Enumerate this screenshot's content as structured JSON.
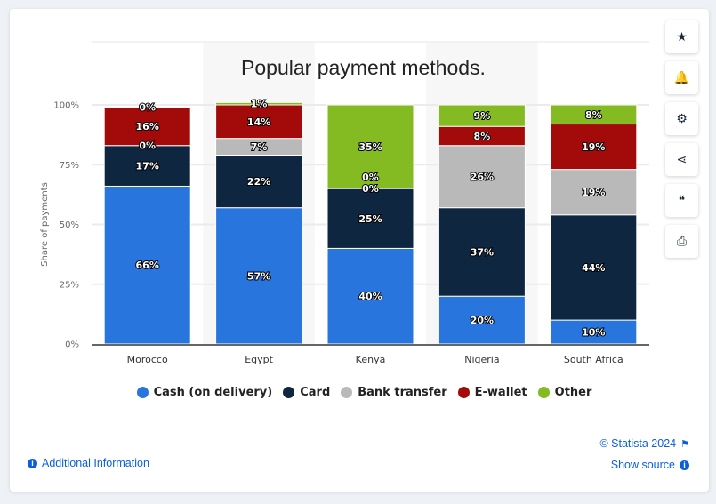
{
  "chart_data": {
    "type": "bar",
    "stacked": true,
    "title": "Popular payment methods.",
    "ylabel": "Share of payments",
    "xlabel": "",
    "ylim": [
      0,
      100
    ],
    "yticks": [
      "0%",
      "25%",
      "50%",
      "75%",
      "100%"
    ],
    "categories": [
      "Morocco",
      "Egypt",
      "Kenya",
      "Nigeria",
      "South Africa"
    ],
    "series": [
      {
        "name": "Cash (on delivery)",
        "color": "#2876dd",
        "values": [
          66,
          57,
          40,
          20,
          10
        ]
      },
      {
        "name": "Card",
        "color": "#0f2640",
        "values": [
          17,
          22,
          25,
          37,
          44
        ]
      },
      {
        "name": "Bank transfer",
        "color": "#b9b9b9",
        "values": [
          0,
          7,
          0,
          26,
          19
        ]
      },
      {
        "name": "E-wallet",
        "color": "#a30b0b",
        "values": [
          16,
          14,
          0,
          8,
          19
        ]
      },
      {
        "name": "Other",
        "color": "#84ba22",
        "values": [
          0,
          1,
          35,
          9,
          8
        ]
      }
    ],
    "grid": true,
    "legend": "bottom"
  },
  "sidebar": [
    {
      "icon": "star-icon",
      "glyph": "★"
    },
    {
      "icon": "bell-icon",
      "glyph": "🔔"
    },
    {
      "icon": "gear-icon",
      "glyph": "⚙"
    },
    {
      "icon": "share-icon",
      "glyph": "⋖"
    },
    {
      "icon": "quote-icon",
      "glyph": "❝"
    },
    {
      "icon": "print-icon",
      "glyph": "⎙"
    }
  ],
  "footer": {
    "copyright": "© Statista 2024",
    "show_source": "Show source",
    "additional_info": "Additional Information"
  },
  "colors": {
    "link": "#0b5fdb"
  }
}
